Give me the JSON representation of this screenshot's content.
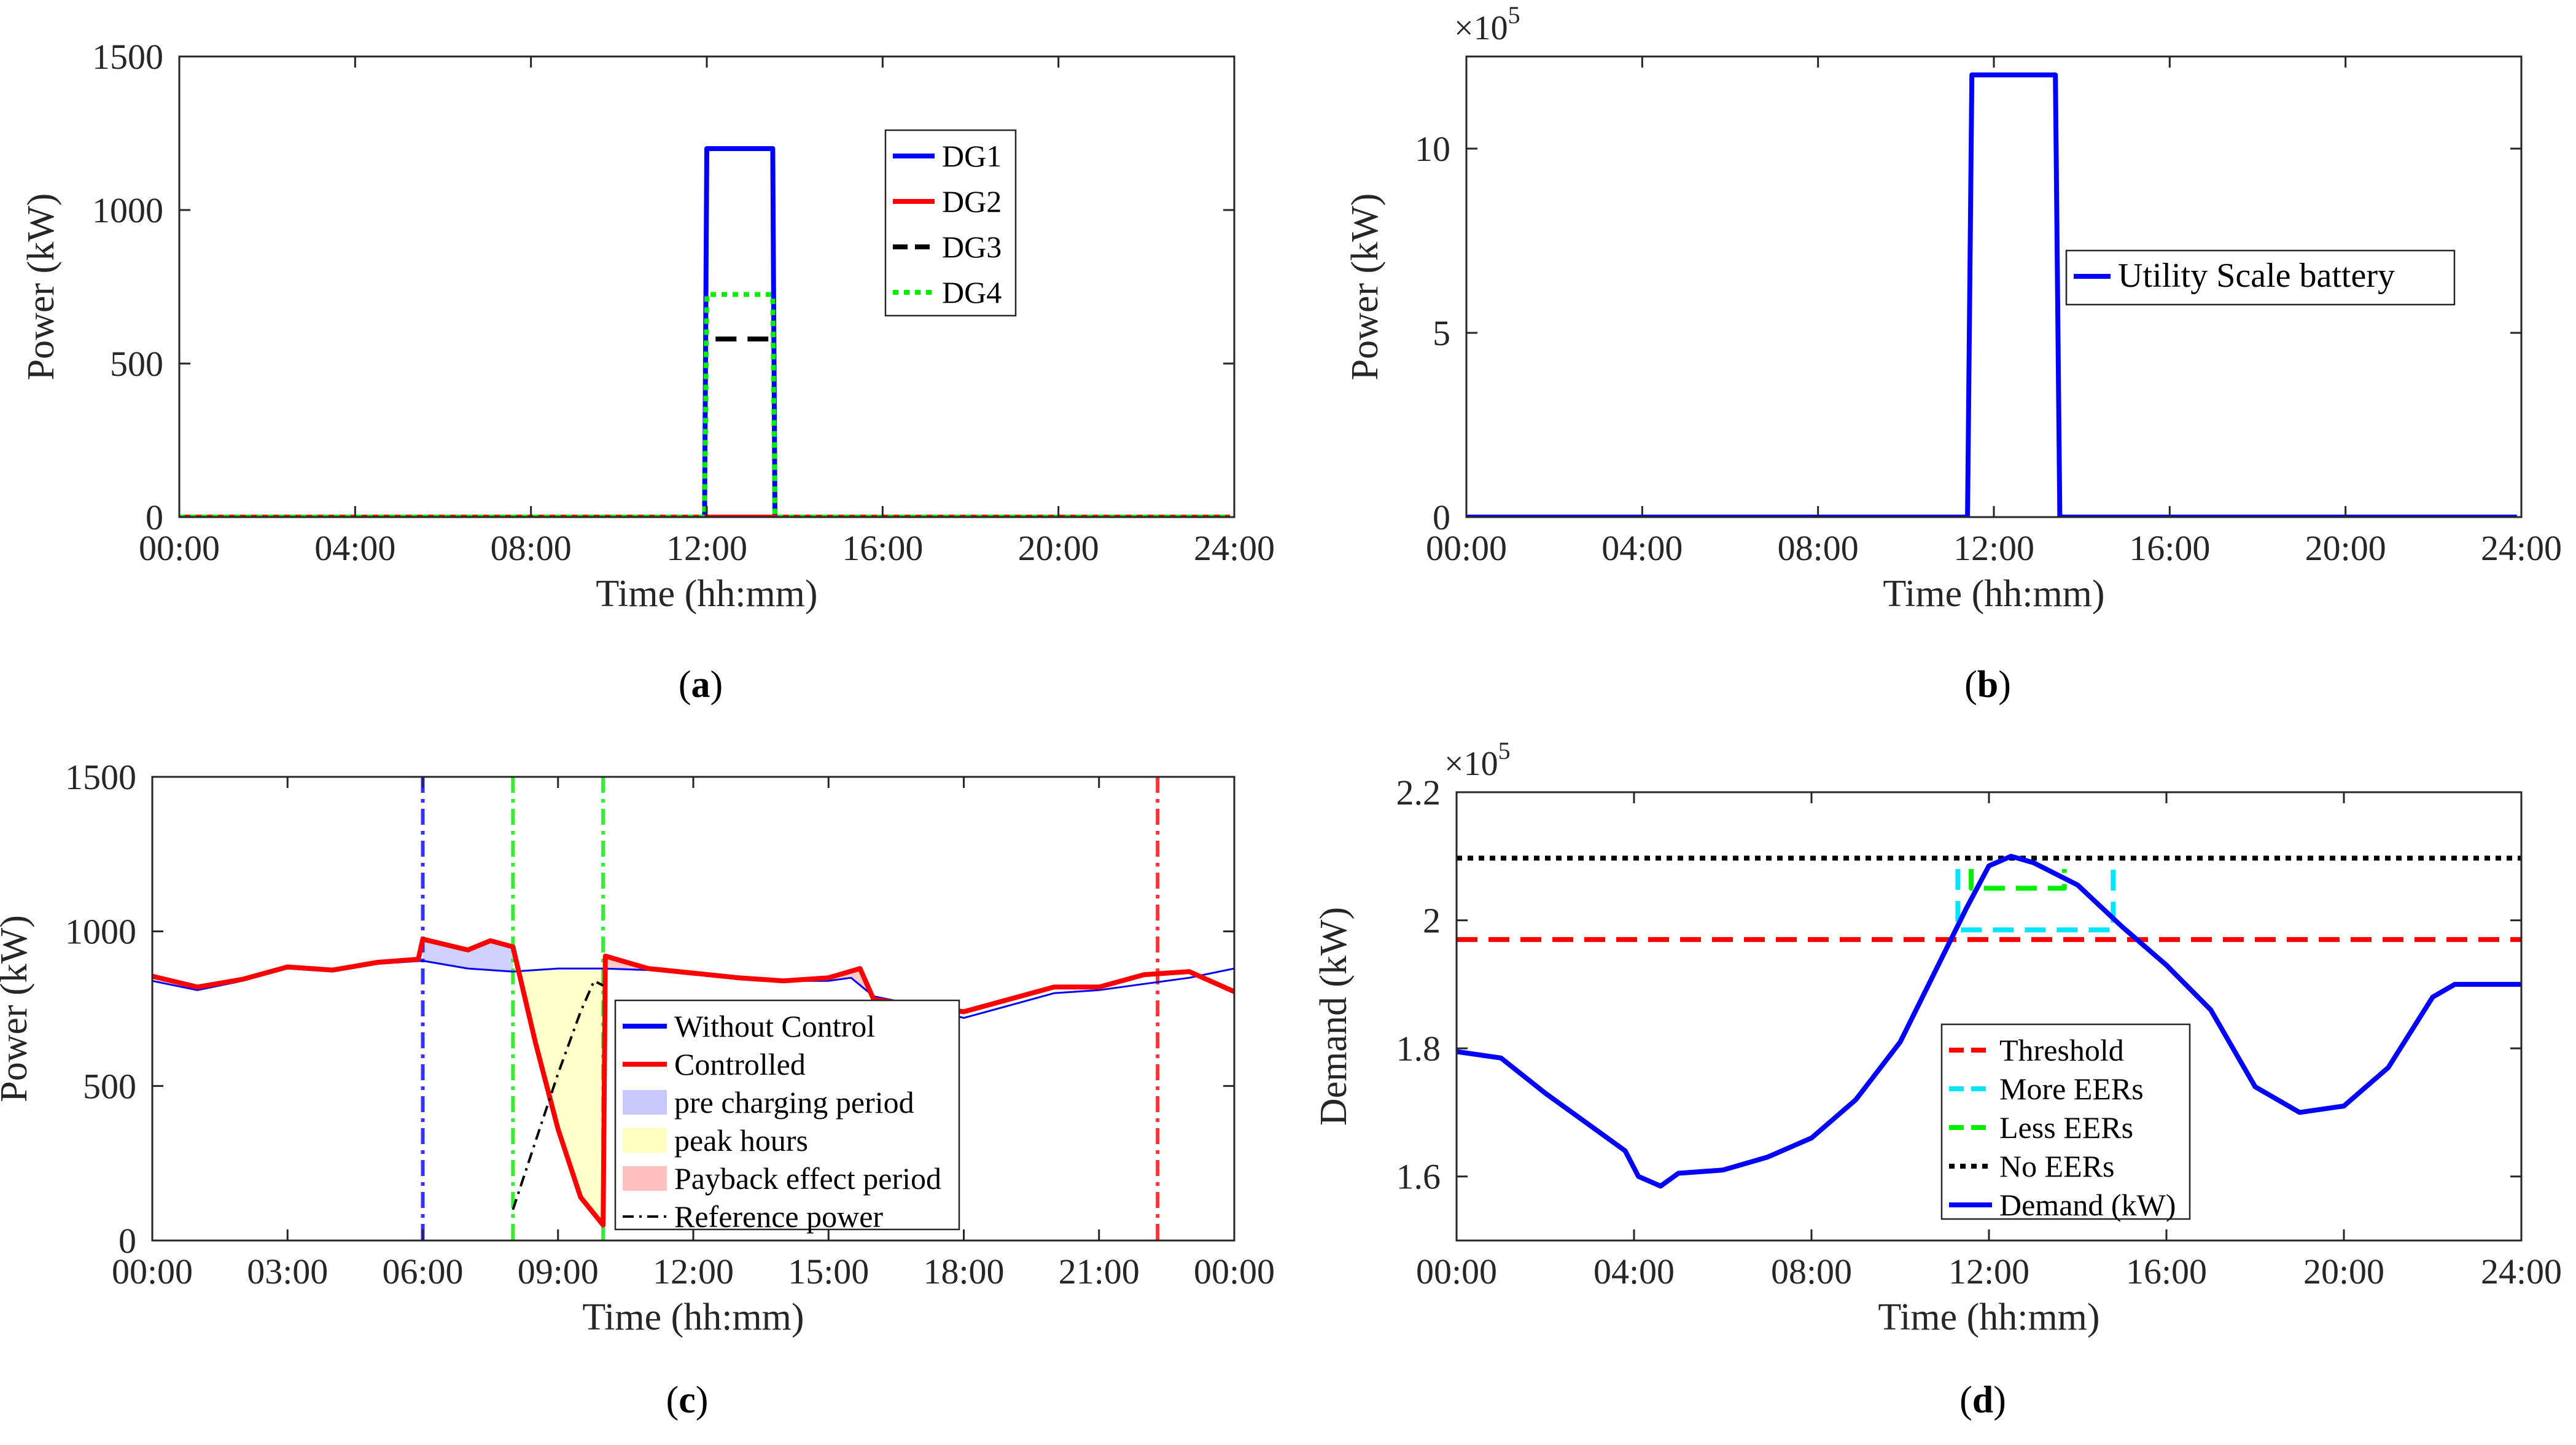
{
  "chart_data": [
    {
      "id": "a",
      "type": "line",
      "caption_letter": "a",
      "xlabel": "Time (hh:mm)",
      "ylabel": "Power (kW)",
      "xticks": [
        "00:00",
        "04:00",
        "08:00",
        "12:00",
        "16:00",
        "20:00",
        "24:00"
      ],
      "yticks": [
        "0",
        "500",
        "1000",
        "1500"
      ],
      "xlim": [
        0,
        24
      ],
      "ylim": [
        0,
        1500
      ],
      "series": [
        {
          "name": "DG1",
          "color": "#0000ff",
          "style": "solid",
          "points": [
            [
              0,
              0
            ],
            [
              11.95,
              0
            ],
            [
              12.0,
              1200
            ],
            [
              13.5,
              1200
            ],
            [
              13.55,
              0
            ],
            [
              23.9,
              0
            ]
          ]
        },
        {
          "name": "DG2",
          "color": "#ff0000",
          "style": "solid",
          "points": [
            [
              0,
              0
            ],
            [
              23.9,
              0
            ]
          ]
        },
        {
          "name": "DG3",
          "color": "#000000",
          "style": "dashed",
          "points": [
            [
              12.2,
              580
            ],
            [
              13.4,
              580
            ]
          ]
        },
        {
          "name": "DG4",
          "color": "#00ee00",
          "style": "dotted",
          "points": [
            [
              0,
              0
            ],
            [
              11.95,
              0
            ],
            [
              12.0,
              725
            ],
            [
              13.5,
              725
            ],
            [
              13.55,
              0
            ],
            [
              23.9,
              0
            ]
          ]
        }
      ],
      "legend": [
        "DG1",
        "DG2",
        "DG3",
        "DG4"
      ]
    },
    {
      "id": "b",
      "type": "line",
      "caption_letter": "b",
      "xlabel": "Time (hh:mm)",
      "ylabel": "Power (kW)",
      "multiplier": "×10",
      "multiplier_exp": "5",
      "xticks": [
        "00:00",
        "04:00",
        "08:00",
        "12:00",
        "16:00",
        "20:00",
        "24:00"
      ],
      "yticks": [
        "0",
        "5",
        "10"
      ],
      "xlim": [
        0,
        24
      ],
      "ylim": [
        0,
        12.5
      ],
      "series": [
        {
          "name": "Utility Scale battery",
          "color": "#0000ff",
          "style": "solid",
          "points": [
            [
              0,
              0
            ],
            [
              11.4,
              0
            ],
            [
              11.5,
              12
            ],
            [
              13.4,
              12
            ],
            [
              13.5,
              0
            ],
            [
              23.9,
              0
            ]
          ]
        }
      ],
      "legend": [
        "Utility Scale battery"
      ]
    },
    {
      "id": "c",
      "type": "line",
      "caption_letter": "c",
      "xlabel": "Time (hh:mm)",
      "ylabel": "Power (kW)",
      "xticks": [
        "00:00",
        "03:00",
        "06:00",
        "09:00",
        "12:00",
        "15:00",
        "18:00",
        "21:00",
        "00:00"
      ],
      "yticks": [
        "0",
        "500",
        "1000",
        "1500"
      ],
      "xlim": [
        0,
        24
      ],
      "ylim": [
        0,
        1500
      ],
      "vlines": [
        {
          "x": 6.0,
          "color": "#3333ff"
        },
        {
          "x": 8.0,
          "color": "#33ee33"
        },
        {
          "x": 10.0,
          "color": "#33ee33"
        },
        {
          "x": 22.3,
          "color": "#ff3333"
        }
      ],
      "series": [
        {
          "name": "Without Control",
          "color": "#0000ff",
          "style": "solid",
          "points": [
            [
              0,
              840
            ],
            [
              1,
              810
            ],
            [
              2,
              840
            ],
            [
              3,
              880
            ],
            [
              4,
              870
            ],
            [
              5,
              895
            ],
            [
              6,
              905
            ],
            [
              7,
              880
            ],
            [
              8,
              870
            ],
            [
              9,
              880
            ],
            [
              10,
              880
            ],
            [
              11,
              875
            ],
            [
              12,
              860
            ],
            [
              13,
              850
            ],
            [
              14,
              840
            ],
            [
              15,
              840
            ],
            [
              15.5,
              850
            ],
            [
              16,
              790
            ],
            [
              17,
              760
            ],
            [
              18,
              720
            ],
            [
              19,
              760
            ],
            [
              20,
              800
            ],
            [
              21,
              810
            ],
            [
              22,
              830
            ],
            [
              23,
              850
            ],
            [
              24,
              880
            ]
          ]
        },
        {
          "name": "Controlled",
          "color": "#ff0000",
          "style": "solid",
          "points": [
            [
              0,
              855
            ],
            [
              1,
              820
            ],
            [
              2,
              845
            ],
            [
              3,
              885
            ],
            [
              4,
              875
            ],
            [
              5,
              900
            ],
            [
              5.9,
              910
            ],
            [
              6.0,
              975
            ],
            [
              7,
              940
            ],
            [
              7.5,
              970
            ],
            [
              8,
              950
            ],
            [
              8.5,
              640
            ],
            [
              9,
              360
            ],
            [
              9.5,
              140
            ],
            [
              10,
              50
            ],
            [
              10.05,
              920
            ],
            [
              11,
              880
            ],
            [
              12,
              865
            ],
            [
              13,
              850
            ],
            [
              14,
              840
            ],
            [
              15,
              850
            ],
            [
              15.7,
              880
            ],
            [
              16,
              780
            ],
            [
              17,
              760
            ],
            [
              18,
              740
            ],
            [
              19,
              780
            ],
            [
              20,
              820
            ],
            [
              21,
              820
            ],
            [
              22,
              860
            ],
            [
              23,
              870
            ],
            [
              24,
              805
            ]
          ]
        },
        {
          "name": "Reference power",
          "color": "#000000",
          "style": "dashdot",
          "points": [
            [
              8,
              100
            ],
            [
              8.5,
              320
            ],
            [
              9,
              540
            ],
            [
              9.5,
              740
            ],
            [
              9.8,
              840
            ],
            [
              10,
              825
            ]
          ]
        }
      ],
      "legend": [
        "Without Control",
        "Controlled",
        "pre charging period",
        "peak hours",
        "Payback effect period",
        "Reference power"
      ],
      "fills": [
        {
          "name": "pre charging period",
          "color": "#c8c8ff",
          "x_range": [
            6,
            8
          ]
        },
        {
          "name": "peak hours",
          "color": "#ffffc0",
          "x_range": [
            8,
            10
          ]
        },
        {
          "name": "Payback effect period",
          "color": "#ffc0c0",
          "x_range": [
            10,
            16
          ]
        }
      ]
    },
    {
      "id": "d",
      "type": "line",
      "caption_letter": "d",
      "xlabel": "Time (hh:mm)",
      "ylabel": "Demand (kW)",
      "multiplier": "×10",
      "multiplier_exp": "5",
      "xticks": [
        "00:00",
        "04:00",
        "08:00",
        "12:00",
        "16:00",
        "20:00",
        "24:00"
      ],
      "yticks": [
        "1.6",
        "1.8",
        "2",
        "2.2"
      ],
      "xlim": [
        0,
        24
      ],
      "ylim": [
        1.5,
        2.2
      ],
      "series": [
        {
          "name": "Threshold",
          "color": "#ff0000",
          "style": "dashed",
          "points": [
            [
              0,
              1.97
            ],
            [
              24,
              1.97
            ]
          ]
        },
        {
          "name": "More EERs",
          "color": "#00e5ff",
          "style": "dashed",
          "points": [
            [
              11.3,
              2.08
            ],
            [
              11.3,
              1.985
            ],
            [
              14.8,
              1.985
            ],
            [
              14.8,
              2.08
            ]
          ]
        },
        {
          "name": "Less EERs",
          "color": "#00ee00",
          "style": "dashed",
          "points": [
            [
              11.6,
              2.08
            ],
            [
              11.6,
              2.05
            ],
            [
              13.7,
              2.05
            ],
            [
              13.7,
              2.08
            ]
          ]
        },
        {
          "name": "No EERs",
          "color": "#000000",
          "style": "dotted",
          "points": [
            [
              0,
              2.097
            ],
            [
              24,
              2.097
            ]
          ]
        },
        {
          "name": "Demand (kW)",
          "color": "#0000ff",
          "style": "solid",
          "points": [
            [
              0,
              1.795
            ],
            [
              1,
              1.785
            ],
            [
              2,
              1.73
            ],
            [
              3,
              1.68
            ],
            [
              3.8,
              1.64
            ],
            [
              4.1,
              1.6
            ],
            [
              4.6,
              1.585
            ],
            [
              5,
              1.605
            ],
            [
              6,
              1.61
            ],
            [
              7,
              1.63
            ],
            [
              8,
              1.66
            ],
            [
              9,
              1.72
            ],
            [
              10,
              1.81
            ],
            [
              11,
              1.95
            ],
            [
              11.5,
              2.02
            ],
            [
              12,
              2.085
            ],
            [
              12.5,
              2.1
            ],
            [
              13,
              2.09
            ],
            [
              14,
              2.055
            ],
            [
              15,
              1.99
            ],
            [
              16,
              1.93
            ],
            [
              17,
              1.86
            ],
            [
              18,
              1.74
            ],
            [
              19,
              1.7
            ],
            [
              20,
              1.71
            ],
            [
              21,
              1.77
            ],
            [
              22,
              1.88
            ],
            [
              22.5,
              1.9
            ],
            [
              23,
              1.9
            ],
            [
              24,
              1.9
            ]
          ]
        }
      ],
      "legend": [
        "Threshold",
        "More EERs",
        "Less EERs",
        "No EERs",
        "Demand (kW)"
      ]
    }
  ]
}
